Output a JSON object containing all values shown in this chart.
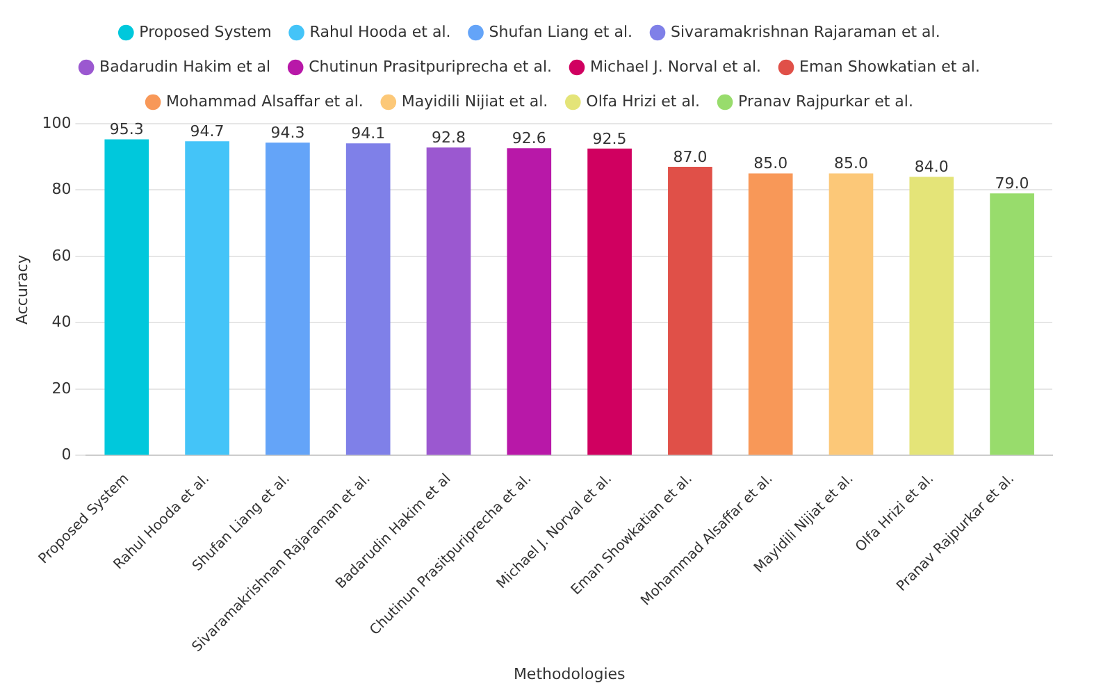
{
  "chart_data": {
    "type": "bar",
    "xlabel": "Methodologies",
    "ylabel": "Accuracy",
    "categories": [
      "Proposed System",
      "Rahul Hooda et al.",
      "Shufan Liang et al.",
      "Sivaramakrishnan Rajaraman et al.",
      "Badarudin Hakim et al",
      "Chutinun Prasitpuriprecha et al.",
      "Michael J. Norval et al.",
      "Eman Showkatian et al.",
      "Mohammad Alsaffar et al.",
      "Mayidili Nijiat et al.",
      "Olfa Hrizi et al.",
      "Pranav Rajpurkar et al."
    ],
    "series": [
      {
        "name": "Proposed System",
        "color": "#00c8dc",
        "values": [
          95.3,
          null,
          null,
          null,
          null,
          null,
          null,
          null,
          null,
          null,
          null,
          null
        ],
        "value_labels": [
          "95.3",
          null,
          null,
          null,
          null,
          null,
          null,
          null,
          null,
          null,
          null,
          null
        ]
      },
      {
        "name": "Rahul Hooda et al.",
        "color": "#44c4f8",
        "values": [
          null,
          94.7,
          null,
          null,
          null,
          null,
          null,
          null,
          null,
          null,
          null,
          null
        ],
        "value_labels": [
          null,
          "94.7",
          null,
          null,
          null,
          null,
          null,
          null,
          null,
          null,
          null,
          null
        ]
      },
      {
        "name": "Shufan Liang et al.",
        "color": "#64a4f8",
        "values": [
          null,
          null,
          94.3,
          null,
          null,
          null,
          null,
          null,
          null,
          null,
          null,
          null
        ],
        "value_labels": [
          null,
          null,
          "94.3",
          null,
          null,
          null,
          null,
          null,
          null,
          null,
          null,
          null
        ]
      },
      {
        "name": "Sivaramakrishnan Rajaraman et al.",
        "color": "#7f80e8",
        "values": [
          null,
          null,
          null,
          94.1,
          null,
          null,
          null,
          null,
          null,
          null,
          null,
          null
        ],
        "value_labels": [
          null,
          null,
          null,
          "94.1",
          null,
          null,
          null,
          null,
          null,
          null,
          null,
          null
        ]
      },
      {
        "name": "Badarudin Hakim et al",
        "color": "#9b58d0",
        "values": [
          null,
          null,
          null,
          null,
          92.8,
          null,
          null,
          null,
          null,
          null,
          null,
          null
        ],
        "value_labels": [
          null,
          null,
          null,
          null,
          "92.8",
          null,
          null,
          null,
          null,
          null,
          null,
          null
        ]
      },
      {
        "name": "Chutinun Prasitpuriprecha et al.",
        "color": "#b818a8",
        "values": [
          null,
          null,
          null,
          null,
          null,
          92.6,
          null,
          null,
          null,
          null,
          null,
          null
        ],
        "value_labels": [
          null,
          null,
          null,
          null,
          null,
          "92.6",
          null,
          null,
          null,
          null,
          null,
          null
        ]
      },
      {
        "name": "Michael J. Norval et al.",
        "color": "#d00060",
        "values": [
          null,
          null,
          null,
          null,
          null,
          null,
          92.5,
          null,
          null,
          null,
          null,
          null
        ],
        "value_labels": [
          null,
          null,
          null,
          null,
          null,
          null,
          "92.5",
          null,
          null,
          null,
          null,
          null
        ]
      },
      {
        "name": "Eman Showkatian et al.",
        "color": "#e05048",
        "values": [
          null,
          null,
          null,
          null,
          null,
          null,
          null,
          87.0,
          null,
          null,
          null,
          null
        ],
        "value_labels": [
          null,
          null,
          null,
          null,
          null,
          null,
          null,
          "87.0",
          null,
          null,
          null,
          null
        ]
      },
      {
        "name": "Mohammad Alsaffar et al.",
        "color": "#f89858",
        "values": [
          null,
          null,
          null,
          null,
          null,
          null,
          null,
          null,
          85.0,
          null,
          null,
          null
        ],
        "value_labels": [
          null,
          null,
          null,
          null,
          null,
          null,
          null,
          null,
          "85.0",
          null,
          null,
          null
        ]
      },
      {
        "name": "Mayidili Nijiat et al.",
        "color": "#fcc878",
        "values": [
          null,
          null,
          null,
          null,
          null,
          null,
          null,
          null,
          null,
          85.0,
          null,
          null
        ],
        "value_labels": [
          null,
          null,
          null,
          null,
          null,
          null,
          null,
          null,
          null,
          "85.0",
          null,
          null
        ]
      },
      {
        "name": "Olfa Hrizi et al.",
        "color": "#e4e478",
        "values": [
          null,
          null,
          null,
          null,
          null,
          null,
          null,
          null,
          null,
          null,
          84.0,
          null
        ],
        "value_labels": [
          null,
          null,
          null,
          null,
          null,
          null,
          null,
          null,
          null,
          null,
          "84.0",
          null
        ]
      },
      {
        "name": "Pranav Rajpurkar et al.",
        "color": "#98dc6c",
        "values": [
          null,
          null,
          null,
          null,
          null,
          null,
          null,
          null,
          null,
          null,
          null,
          79.0
        ],
        "value_labels": [
          null,
          null,
          null,
          null,
          null,
          null,
          null,
          null,
          null,
          null,
          null,
          "79.0"
        ]
      }
    ],
    "ylim": [
      0,
      100
    ],
    "yticks": [
      0,
      20,
      40,
      60,
      80,
      100
    ],
    "grid": "y",
    "legend": "top"
  }
}
